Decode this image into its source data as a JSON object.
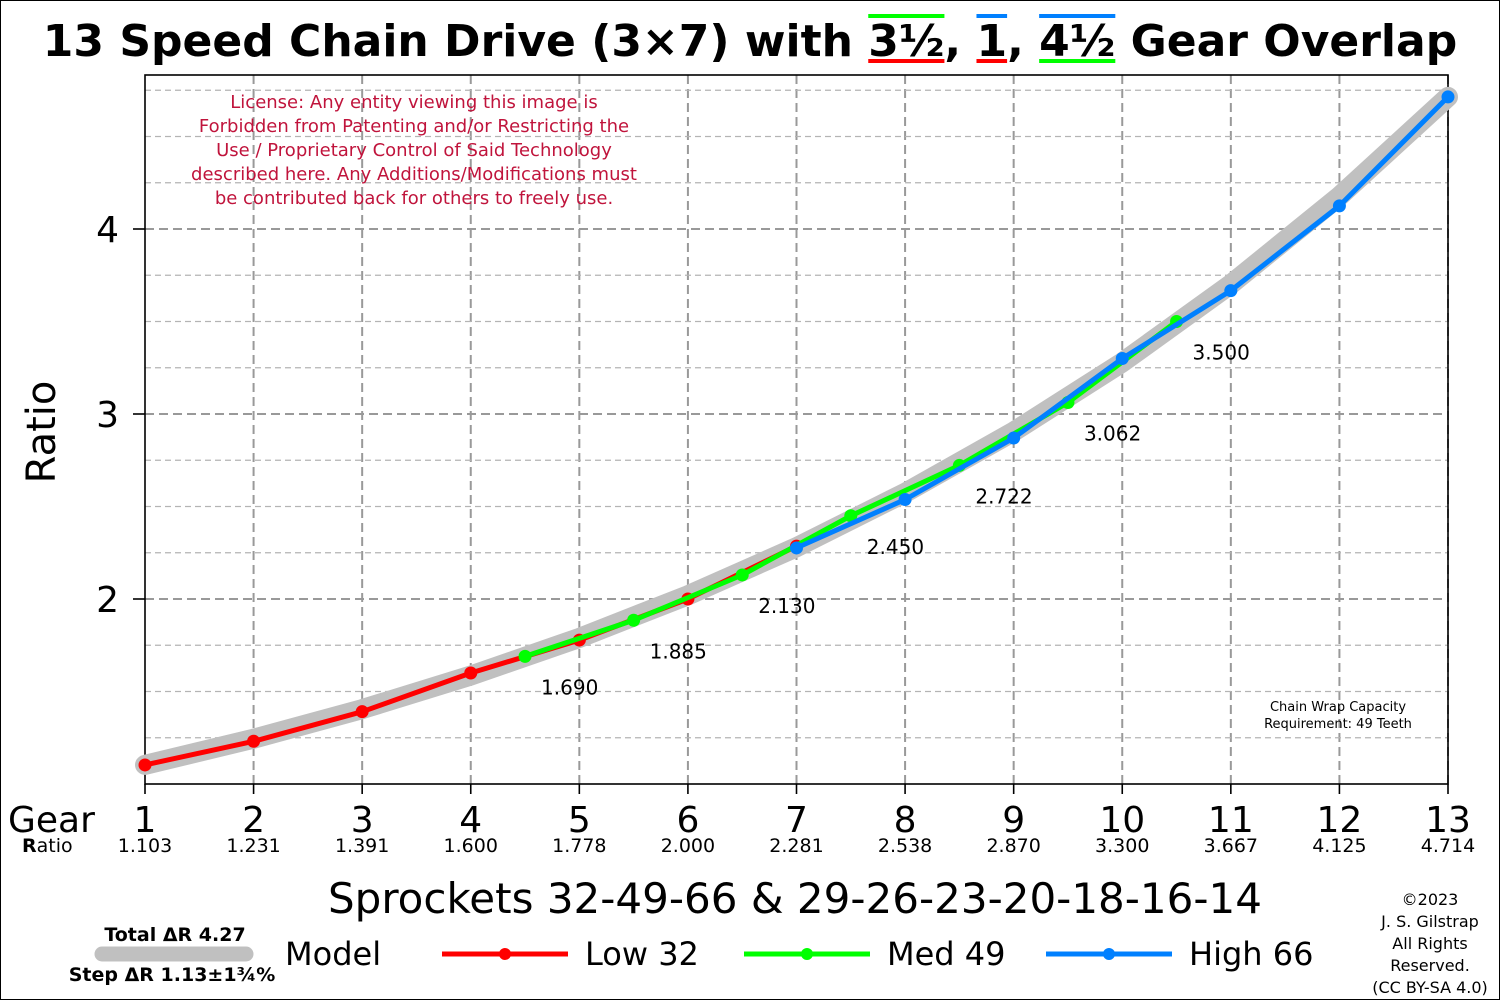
{
  "title": {
    "prefix": "13 Speed Chain Drive (3×7) with ",
    "o1": "3½",
    "sep1": ", ",
    "o2": "1",
    "sep2": ", ",
    "o3": "4½",
    "suffix": " Gear Overlap"
  },
  "license": [
    "License: Any entity viewing this image is",
    "Forbidden from Patenting and/or Restricting the",
    "Use / Proprietary Control of Said Technology",
    "described here. Any Additions/Modifications must",
    "be contributed back for others to freely use."
  ],
  "chain_wrap": [
    "Chain Wrap Capacity",
    "Requirement: 49 Teeth"
  ],
  "gear_label": "Gear",
  "ratio_label_bold": "R",
  "ratio_label_rest": "atio",
  "sprockets": "Sprockets  32-49-66  &  29-26-23-20-18-16-14",
  "total_dr": "Total ΔR 4.27",
  "step_dr": "Step ΔR 1.13±1¾%",
  "copyright": [
    "©2023",
    "J. S. Gilstrap",
    "All Rights",
    "Reserved.",
    "(CC BY-SA 4.0)"
  ],
  "colors": {
    "low": "#ff0000",
    "med": "#00ff00",
    "high": "#0080ff",
    "model": "#c0c0c0",
    "license": "#c0143c",
    "grid": "#a0a0a0"
  },
  "chart_data": {
    "type": "line",
    "xlim": [
      1,
      13
    ],
    "ylim": [
      1,
      4.8
    ],
    "ylabel": "Ratio",
    "xlabel": "Sprockets  32-49-66  &  29-26-23-20-18-16-14",
    "y_ticks": [
      2,
      3,
      4
    ],
    "x_ticks": [
      1,
      2,
      3,
      4,
      5,
      6,
      7,
      8,
      9,
      10,
      11,
      12,
      13
    ],
    "gear_ratios": [
      "1.103",
      "1.231",
      "1.391",
      "1.600",
      "1.778",
      "2.000",
      "2.281",
      "2.538",
      "2.870",
      "3.300",
      "3.667",
      "4.125",
      "4.714"
    ],
    "grid": true,
    "legend_position": "bottom",
    "series": [
      {
        "name": "Model",
        "style": "band",
        "x": [
          1,
          2,
          3,
          4,
          5,
          6,
          7,
          8,
          9,
          10,
          11,
          12,
          13
        ],
        "y": [
          1.103,
          1.245,
          1.405,
          1.586,
          1.79,
          2.02,
          2.28,
          2.574,
          2.905,
          3.279,
          3.701,
          4.177,
          4.714
        ]
      },
      {
        "name": "Low 32",
        "x": [
          1,
          2,
          3,
          4,
          5,
          6,
          7
        ],
        "y": [
          1.103,
          1.231,
          1.391,
          1.6,
          1.778,
          2.0,
          2.286
        ]
      },
      {
        "name": "Med 49",
        "x": [
          4.5,
          5.5,
          6.5,
          7.5,
          8.5,
          9.5,
          10.5
        ],
        "y": [
          1.69,
          1.885,
          2.13,
          2.45,
          2.722,
          3.062,
          3.5
        ]
      },
      {
        "name": "High 66",
        "x": [
          7,
          8,
          9,
          10,
          11,
          12,
          13
        ],
        "y": [
          2.276,
          2.538,
          2.87,
          3.3,
          3.667,
          4.125,
          4.714
        ]
      }
    ],
    "annotations": [
      {
        "x": 4.5,
        "y": 1.69,
        "text": "1.690"
      },
      {
        "x": 5.5,
        "y": 1.885,
        "text": "1.885"
      },
      {
        "x": 6.5,
        "y": 2.13,
        "text": "2.130"
      },
      {
        "x": 7.5,
        "y": 2.45,
        "text": "2.450"
      },
      {
        "x": 8.5,
        "y": 2.722,
        "text": "2.722"
      },
      {
        "x": 9.5,
        "y": 3.062,
        "text": "3.062"
      },
      {
        "x": 10.5,
        "y": 3.5,
        "text": "3.500"
      }
    ]
  }
}
